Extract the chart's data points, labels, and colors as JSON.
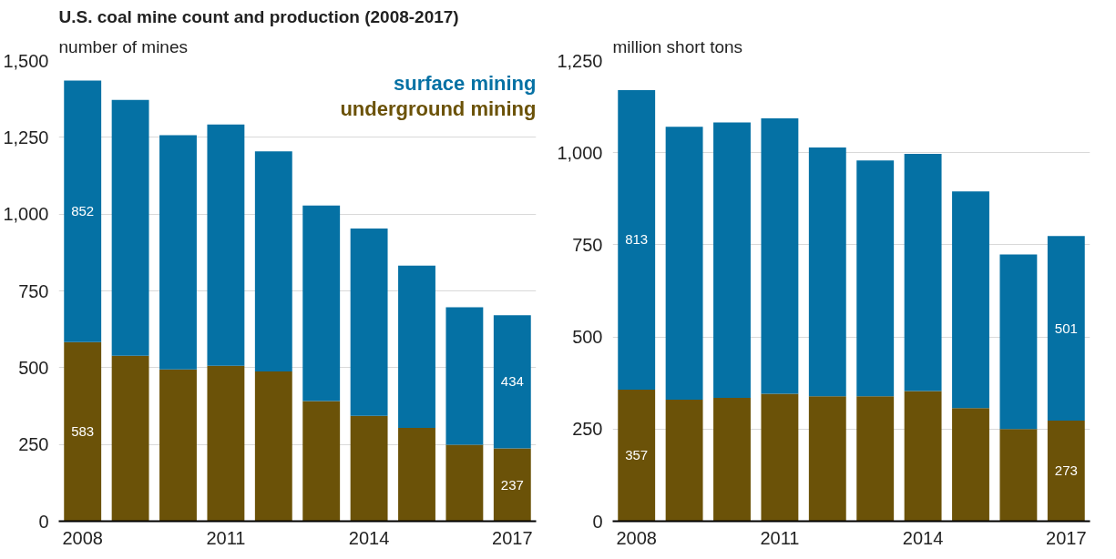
{
  "chart_data": [
    {
      "type": "bar",
      "stacked": true,
      "title": "U.S. coal mine count and production (2008-2017)",
      "ylabel": "number of mines",
      "categories": [
        "2008",
        null,
        null,
        "2011",
        null,
        null,
        "2014",
        null,
        null,
        "2017"
      ],
      "series": [
        {
          "name": "underground mining",
          "color": "#6b5208",
          "values": [
            583,
            539,
            494,
            506,
            488,
            391,
            343,
            304,
            249,
            237
          ],
          "value_labels": [
            "583",
            null,
            null,
            null,
            null,
            null,
            null,
            null,
            null,
            "237"
          ]
        },
        {
          "name": "surface mining",
          "color": "#0571a4",
          "values": [
            852,
            833,
            763,
            786,
            716,
            637,
            610,
            528,
            448,
            434
          ],
          "value_labels": [
            "852",
            null,
            null,
            null,
            null,
            null,
            null,
            null,
            null,
            "434"
          ]
        }
      ],
      "ylim": [
        0,
        1500
      ],
      "yticks": [
        {
          "value": 0,
          "label": "0"
        },
        {
          "value": 250,
          "label": "250"
        },
        {
          "value": 500,
          "label": "500"
        },
        {
          "value": 750,
          "label": "750"
        },
        {
          "value": 1000,
          "label": "1,000"
        },
        {
          "value": 1250,
          "label": "1,250"
        },
        {
          "value": 1500,
          "label": "1,500"
        }
      ],
      "grid": "y",
      "legend": "top right"
    },
    {
      "type": "bar",
      "stacked": true,
      "ylabel": "million short tons",
      "categories": [
        "2008",
        null,
        null,
        "2011",
        null,
        null,
        "2014",
        null,
        null,
        "2017"
      ],
      "series": [
        {
          "color": "#6b5208",
          "values": [
            357,
            330,
            335,
            346,
            339,
            339,
            353,
            307,
            250,
            273
          ],
          "value_labels": [
            "357",
            null,
            null,
            null,
            null,
            null,
            null,
            null,
            null,
            "273"
          ]
        },
        {
          "color": "#0571a4",
          "values": [
            813,
            740,
            747,
            747,
            675,
            640,
            644,
            588,
            474,
            501
          ],
          "value_labels": [
            "813",
            null,
            null,
            null,
            null,
            null,
            null,
            null,
            null,
            "501"
          ]
        }
      ],
      "ylim": [
        0,
        1250
      ],
      "yticks": [
        {
          "value": 0,
          "label": "0"
        },
        {
          "value": 250,
          "label": "250"
        },
        {
          "value": 500,
          "label": "500"
        },
        {
          "value": 750,
          "label": "750"
        },
        {
          "value": 1000,
          "label": "1,000"
        },
        {
          "value": 1250,
          "label": "1,250"
        }
      ],
      "grid": "y",
      "legend": false
    }
  ]
}
